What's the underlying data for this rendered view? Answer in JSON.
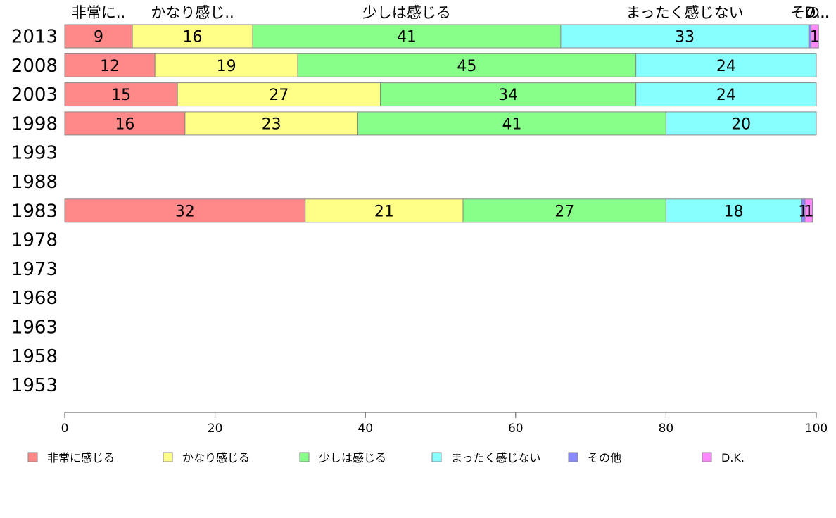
{
  "chart_data": {
    "type": "bar",
    "orientation": "horizontal",
    "stacked": true,
    "categories": [
      "2013",
      "2008",
      "2003",
      "1998",
      "1993",
      "1988",
      "1983",
      "1978",
      "1973",
      "1968",
      "1963",
      "1958",
      "1953"
    ],
    "series": [
      {
        "name": "非常に感じる",
        "short_name": "非常に..",
        "color": "#ff8888",
        "values": [
          9,
          12,
          15,
          16,
          null,
          null,
          32,
          null,
          null,
          null,
          null,
          null,
          null
        ]
      },
      {
        "name": "かなり感じる",
        "short_name": "かなり感じ..",
        "color": "#ffff88",
        "values": [
          16,
          19,
          27,
          23,
          null,
          null,
          21,
          null,
          null,
          null,
          null,
          null,
          null
        ]
      },
      {
        "name": "少しは感じる",
        "short_name": "少しは感じる",
        "color": "#88ff88",
        "values": [
          41,
          45,
          34,
          41,
          null,
          null,
          27,
          null,
          null,
          null,
          null,
          null,
          null
        ]
      },
      {
        "name": "まったく感じない",
        "short_name": "まったく感じない",
        "color": "#88ffff",
        "values": [
          33,
          24,
          24,
          20,
          null,
          null,
          18,
          null,
          null,
          null,
          null,
          null,
          null
        ]
      },
      {
        "name": "その他",
        "short_name": "その..",
        "color": "#8888ff",
        "values": [
          0.3,
          0,
          0,
          0,
          null,
          null,
          0.5,
          null,
          null,
          null,
          null,
          null,
          null
        ]
      },
      {
        "name": "D.K.",
        "short_name": "D..",
        "color": "#ff88ff",
        "values": [
          1,
          0,
          0,
          0,
          null,
          null,
          1,
          null,
          null,
          null,
          null,
          null,
          null
        ]
      }
    ],
    "segment_labels": [
      [
        "9",
        "16",
        "41",
        "33",
        "",
        "1"
      ],
      [
        "12",
        "19",
        "45",
        "24",
        "",
        ""
      ],
      [
        "15",
        "27",
        "34",
        "24",
        "",
        ""
      ],
      [
        "16",
        "23",
        "41",
        "20",
        "",
        ""
      ],
      [],
      [],
      [
        "32",
        "21",
        "27",
        "18",
        "1",
        "1"
      ],
      [],
      [],
      [],
      [],
      [],
      []
    ],
    "xlim": [
      0,
      100
    ],
    "xticks": [
      0,
      20,
      40,
      60,
      80,
      100
    ],
    "grid": false,
    "legend_position": "bottom"
  }
}
